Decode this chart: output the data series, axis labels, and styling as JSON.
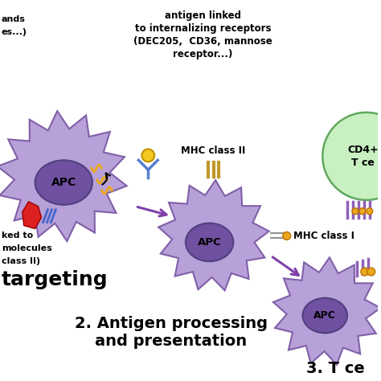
{
  "bg_color": "#ffffff",
  "apc_body_color": "#b8a0d8",
  "apc_body_edge": "#8060a8",
  "apc_nucleus_color": "#7050a0",
  "apc_nucleus_edge": "#504080",
  "apc_label": "APC",
  "arrow_color": "#8040a8",
  "text_color": "#000000",
  "text_antigen1": "antigen linked",
  "text_antigen2": "to internalizing receptors",
  "text_antigen3": "(DEC205,  CD36, mannose",
  "text_antigen4": "receptor...)",
  "text_left1": "ands",
  "text_left2": "es...)",
  "text_left3": "ked to",
  "text_left4": "molecules",
  "text_left5": "class II)",
  "text_targeting": "targeting",
  "text_processing": "2. Antigen processing",
  "text_presentation": "and presentation",
  "text_tcell_num": "3. T ce",
  "mhc2_label": "MHC class II",
  "mhc1_label": "MHC class I",
  "cd4_label": "CD4+",
  "tcell_label": "T ce",
  "tcell_color": "#c8f0c0",
  "tcell_edge": "#60a860",
  "antibody_color": "#5580d0",
  "antigen_color": "#e8a820",
  "red_shape_color": "#dd2020",
  "mhc_bar_color": "#c09828",
  "purple_bar_color": "#9060b8"
}
